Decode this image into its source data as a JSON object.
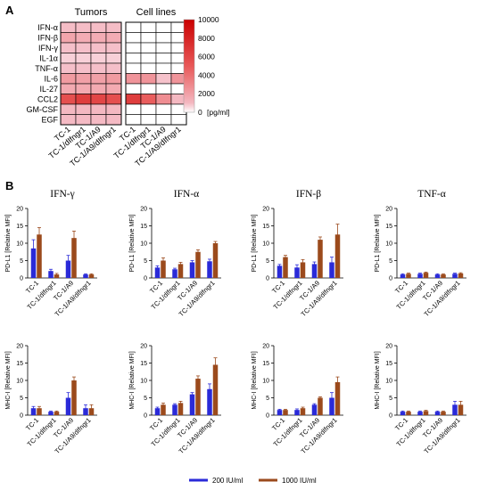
{
  "figure": {
    "panel_a_letter": "A",
    "panel_b_letter": "B",
    "legend": [
      {
        "label": "200 IU/ml",
        "color": "#2a2ad8"
      },
      {
        "label": "1000 IU/ml",
        "color": "#9b4a1c"
      }
    ]
  },
  "chart_data": [
    {
      "type": "heatmap",
      "panel": "A",
      "groups": [
        "Tumors",
        "Cell lines"
      ],
      "rows": [
        "IFN-α",
        "IFN-β",
        "IFN-γ",
        "IL-1α",
        "TNF-α",
        "IL-6",
        "IL-27",
        "CCL2",
        "GM-CSF",
        "EGF"
      ],
      "columns": [
        "TC-1",
        "TC-1/dIfngr1",
        "TC-1/A9",
        "TC-1/A9/dIfngr1",
        "TC-1",
        "TC-1/dIfngr1",
        "TC-1/A9",
        "TC-1/A9/dIfngr1"
      ],
      "values": [
        [
          800,
          800,
          800,
          800,
          0,
          0,
          0,
          0
        ],
        [
          1800,
          1500,
          1500,
          1500,
          0,
          0,
          0,
          0
        ],
        [
          700,
          700,
          700,
          700,
          0,
          0,
          0,
          0
        ],
        [
          400,
          400,
          400,
          400,
          0,
          0,
          0,
          0
        ],
        [
          700,
          700,
          700,
          700,
          0,
          0,
          0,
          0
        ],
        [
          2200,
          2000,
          2000,
          2200,
          2500,
          2500,
          600,
          2500
        ],
        [
          1600,
          1600,
          1600,
          1600,
          0,
          0,
          0,
          0
        ],
        [
          5500,
          6500,
          6000,
          5500,
          6500,
          4800,
          2800,
          1000
        ],
        [
          1000,
          1000,
          1000,
          1000,
          0,
          0,
          0,
          0
        ],
        [
          900,
          900,
          900,
          900,
          0,
          0,
          0,
          0
        ]
      ],
      "colorbar": {
        "min": 0,
        "max": 10000,
        "ticks": [
          0,
          2000,
          4000,
          6000,
          8000,
          10000
        ],
        "unit": "[pg/ml]"
      }
    },
    {
      "type": "bar",
      "panel": "B",
      "title": "IFN-γ",
      "ylabel": "PD-L1 [Relative MFI]",
      "ylim": [
        0,
        20
      ],
      "yticks": [
        0,
        5,
        10,
        15,
        20
      ],
      "categories": [
        "TC-1",
        "TC-1/dIfngr1",
        "TC-1/A9",
        "TC-1/A9/dIfngr1"
      ],
      "series": [
        {
          "name": "200 IU/ml",
          "values": [
            8.5,
            2.0,
            5.0,
            1.0
          ],
          "errors": [
            2.5,
            0.5,
            1.5,
            0.2
          ]
        },
        {
          "name": "1000 IU/ml",
          "values": [
            12.5,
            1.0,
            11.5,
            1.0
          ],
          "errors": [
            2.0,
            0.3,
            2.0,
            0.2
          ]
        }
      ]
    },
    {
      "type": "bar",
      "panel": "B",
      "title": "IFN-α",
      "ylabel": "PD-L1 [Relative MFI]",
      "ylim": [
        0,
        20
      ],
      "yticks": [
        0,
        5,
        10,
        15,
        20
      ],
      "categories": [
        "TC-1",
        "TC-1/dIfngr1",
        "TC-1/A9",
        "TC-1/A9/dIfngr1"
      ],
      "series": [
        {
          "name": "200 IU/ml",
          "values": [
            3.0,
            2.5,
            4.5,
            4.8
          ],
          "errors": [
            0.5,
            0.3,
            0.5,
            0.6
          ]
        },
        {
          "name": "1000 IU/ml",
          "values": [
            5.0,
            4.0,
            7.5,
            10.0
          ],
          "errors": [
            0.8,
            0.5,
            0.6,
            0.5
          ]
        }
      ]
    },
    {
      "type": "bar",
      "panel": "B",
      "title": "IFN-β",
      "ylabel": "PD-L1 [Relative MFI]",
      "ylim": [
        0,
        20
      ],
      "yticks": [
        0,
        5,
        10,
        15,
        20
      ],
      "categories": [
        "TC-1",
        "TC-1/dIfngr1",
        "TC-1/A9",
        "TC-1/A9/dIfngr1"
      ],
      "series": [
        {
          "name": "200 IU/ml",
          "values": [
            3.5,
            3.0,
            4.0,
            4.5
          ],
          "errors": [
            0.4,
            0.8,
            0.6,
            1.5
          ]
        },
        {
          "name": "1000 IU/ml",
          "values": [
            6.0,
            4.5,
            11.0,
            12.5
          ],
          "errors": [
            0.5,
            0.8,
            0.8,
            3.0
          ]
        }
      ]
    },
    {
      "type": "bar",
      "panel": "B",
      "title": "TNF-α",
      "ylabel": "PD-L1 [Relative MFI]",
      "ylim": [
        0,
        20
      ],
      "yticks": [
        0,
        5,
        10,
        15,
        20
      ],
      "categories": [
        "TC-1",
        "TC-1/dIfngr1",
        "TC-1/A9",
        "TC-1/A9/dIfngr1"
      ],
      "series": [
        {
          "name": "200 IU/ml",
          "values": [
            1.0,
            1.2,
            1.0,
            1.2
          ],
          "errors": [
            0.2,
            0.2,
            0.2,
            0.2
          ]
        },
        {
          "name": "1000 IU/ml",
          "values": [
            1.2,
            1.5,
            1.0,
            1.3
          ],
          "errors": [
            0.2,
            0.2,
            0.2,
            0.2
          ]
        }
      ]
    },
    {
      "type": "bar",
      "panel": "B",
      "title": "",
      "ylabel": "MHC-I [Relative MFI]",
      "ylim": [
        0,
        20
      ],
      "yticks": [
        0,
        5,
        10,
        15,
        20
      ],
      "categories": [
        "TC-1",
        "TC-1/dIfngr1",
        "TC-1/A9",
        "TC-1/A9/dIfngr1"
      ],
      "series": [
        {
          "name": "200 IU/ml",
          "values": [
            2.0,
            1.0,
            5.0,
            2.0
          ],
          "errors": [
            0.5,
            0.2,
            1.5,
            1.0
          ]
        },
        {
          "name": "1000 IU/ml",
          "values": [
            2.0,
            1.0,
            10.0,
            2.0
          ],
          "errors": [
            0.5,
            0.2,
            1.0,
            1.0
          ]
        }
      ]
    },
    {
      "type": "bar",
      "panel": "B",
      "title": "",
      "ylabel": "MHC-I [Relative MFI]",
      "ylim": [
        0,
        20
      ],
      "yticks": [
        0,
        5,
        10,
        15,
        20
      ],
      "categories": [
        "TC-1",
        "TC-1/dIfngr1",
        "TC-1/A9",
        "TC-1/A9/dIfngr1"
      ],
      "series": [
        {
          "name": "200 IU/ml",
          "values": [
            2.0,
            3.0,
            6.0,
            7.5
          ],
          "errors": [
            0.3,
            0.3,
            0.5,
            1.5
          ]
        },
        {
          "name": "1000 IU/ml",
          "values": [
            3.0,
            3.5,
            10.5,
            14.5
          ],
          "errors": [
            0.5,
            0.5,
            0.8,
            2.0
          ]
        }
      ]
    },
    {
      "type": "bar",
      "panel": "B",
      "title": "",
      "ylabel": "MHC-I [Relative MFI]",
      "ylim": [
        0,
        20
      ],
      "yticks": [
        0,
        5,
        10,
        15,
        20
      ],
      "categories": [
        "TC-1",
        "TC-1/dIfngr1",
        "TC-1/A9",
        "TC-1/A9/dIfngr1"
      ],
      "series": [
        {
          "name": "200 IU/ml",
          "values": [
            1.5,
            1.5,
            3.0,
            5.0
          ],
          "errors": [
            0.2,
            0.3,
            0.3,
            1.5
          ]
        },
        {
          "name": "1000 IU/ml",
          "values": [
            1.5,
            2.0,
            5.0,
            9.5
          ],
          "errors": [
            0.2,
            0.3,
            0.3,
            1.5
          ]
        }
      ]
    },
    {
      "type": "bar",
      "panel": "B",
      "title": "",
      "ylabel": "MHC-I [Relative MFI]",
      "ylim": [
        0,
        20
      ],
      "yticks": [
        0,
        5,
        10,
        15,
        20
      ],
      "categories": [
        "TC-1",
        "TC-1/dIfngr1",
        "TC-1/A9",
        "TC-1/A9/dIfngr1"
      ],
      "series": [
        {
          "name": "200 IU/ml",
          "values": [
            1.0,
            1.0,
            1.0,
            3.0
          ],
          "errors": [
            0.2,
            0.2,
            0.2,
            1.0
          ]
        },
        {
          "name": "1000 IU/ml",
          "values": [
            1.0,
            1.2,
            1.0,
            3.0
          ],
          "errors": [
            0.2,
            0.2,
            0.2,
            1.0
          ]
        }
      ]
    }
  ]
}
